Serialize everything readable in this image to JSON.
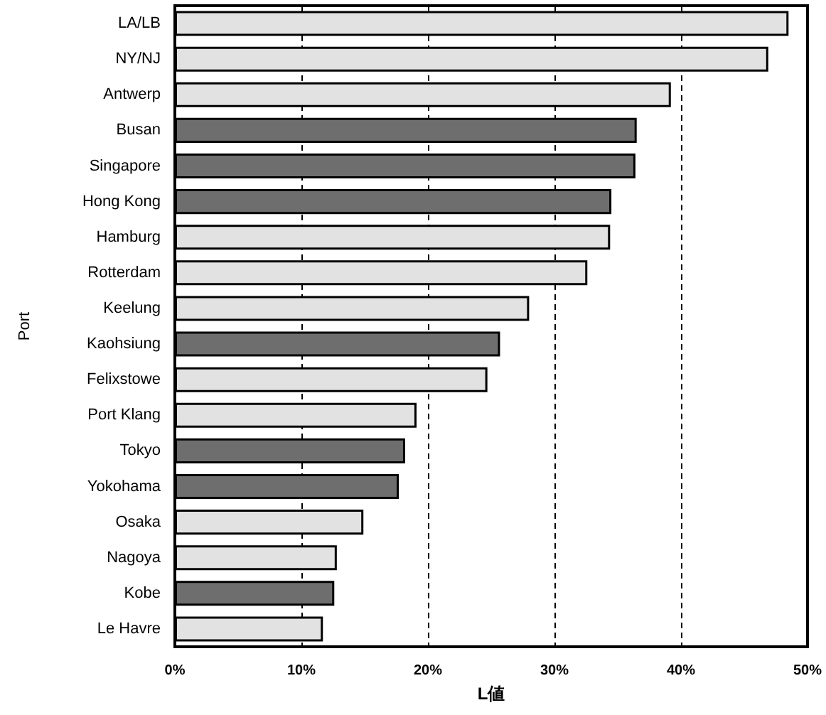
{
  "chart_data": {
    "type": "bar",
    "orientation": "horizontal",
    "xlabel": "L値",
    "ylabel": "Port",
    "categories": [
      "LA/LB",
      "NY/NJ",
      "Antwerp",
      "Busan",
      "Singapore",
      "Hong Kong",
      "Hamburg",
      "Rotterdam",
      "Keelung",
      "Kaohsiung",
      "Felixstowe",
      "Port Klang",
      "Tokyo",
      "Yokohama",
      "Osaka",
      "Nagoya",
      "Kobe",
      "Le Havre"
    ],
    "values": [
      48.5,
      46.9,
      39.2,
      36.5,
      36.4,
      34.5,
      34.4,
      32.6,
      28.0,
      25.7,
      24.7,
      19.1,
      18.2,
      17.7,
      14.9,
      12.8,
      12.6,
      11.7
    ],
    "colors": [
      "#e2e2e2",
      "#e2e2e2",
      "#e2e2e2",
      "#6e6e6e",
      "#6e6e6e",
      "#6e6e6e",
      "#e2e2e2",
      "#e2e2e2",
      "#e2e2e2",
      "#6e6e6e",
      "#e2e2e2",
      "#e2e2e2",
      "#6e6e6e",
      "#6e6e6e",
      "#e2e2e2",
      "#e2e2e2",
      "#6e6e6e",
      "#e2e2e2"
    ],
    "xlim": [
      0,
      50
    ],
    "xticks": [
      {
        "value": 0,
        "label": "0%"
      },
      {
        "value": 10,
        "label": "10%"
      },
      {
        "value": 20,
        "label": "20%"
      },
      {
        "value": 30,
        "label": "30%"
      },
      {
        "value": 40,
        "label": "40%"
      },
      {
        "value": 50,
        "label": "50%"
      }
    ],
    "grid": "x"
  }
}
